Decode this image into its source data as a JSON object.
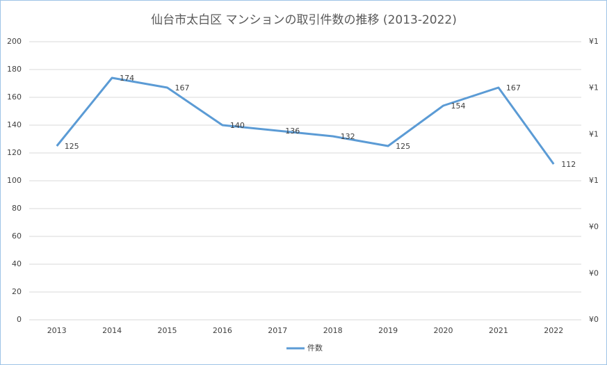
{
  "chart_data": {
    "type": "line",
    "title": "仙台市太白区 マンションの取引件数の推移 (2013-2022)",
    "categories": [
      "2013",
      "2014",
      "2015",
      "2016",
      "2017",
      "2018",
      "2019",
      "2020",
      "2021",
      "2022"
    ],
    "series": [
      {
        "name": "件数",
        "color": "#5b9bd5",
        "values": [
          125,
          174,
          167,
          140,
          136,
          132,
          125,
          154,
          167,
          112
        ]
      }
    ],
    "ylim": [
      0,
      200
    ],
    "yticks": [
      0,
      20,
      40,
      60,
      80,
      100,
      120,
      140,
      160,
      180,
      200
    ],
    "y2lim": [
      0,
      1.2
    ],
    "y2ticks": [
      {
        "value": 0,
        "label": "¥0"
      },
      {
        "value": 0.2,
        "label": "¥0"
      },
      {
        "value": 0.4,
        "label": "¥0"
      },
      {
        "value": 0.6,
        "label": "¥1"
      },
      {
        "value": 0.8,
        "label": "¥1"
      },
      {
        "value": 1.0,
        "label": "¥1"
      },
      {
        "value": 1.2,
        "label": "¥1"
      }
    ],
    "grid": true,
    "legend": "bottom"
  }
}
